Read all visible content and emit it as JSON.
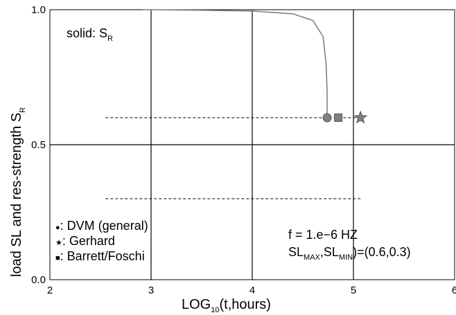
{
  "chart_data": {
    "type": "line",
    "xlabel": "LOG",
    "xlabel_sub": "10",
    "xlabel_suffix": "(t,hours)",
    "ylabel": "load SL and res-strength S",
    "ylabel_sub": "R",
    "xlim": [
      2,
      6
    ],
    "ylim": [
      0.0,
      1.0
    ],
    "x_ticks": [
      2,
      3,
      4,
      5,
      6
    ],
    "x_tick_labels": [
      "2",
      "3",
      "4",
      "5",
      "6"
    ],
    "y_ticks": [
      0.0,
      0.5,
      1.0
    ],
    "y_tick_labels": [
      "0.0",
      "0.5",
      "1.0"
    ],
    "grid": true,
    "residual_strength_curve": {
      "x": [
        2.92,
        3.5,
        4.0,
        4.4,
        4.6,
        4.7,
        4.73,
        4.74,
        4.74
      ],
      "y": [
        1.0,
        0.998,
        0.995,
        0.985,
        0.96,
        0.9,
        0.8,
        0.7,
        0.6
      ],
      "color": "#808080"
    },
    "load_levels": [
      {
        "x": [
          2.55,
          5.08
        ],
        "y": [
          0.6,
          0.6
        ]
      },
      {
        "x": [
          2.55,
          5.08
        ],
        "y": [
          0.3,
          0.3
        ]
      }
    ],
    "markers": [
      {
        "shape": "circle",
        "x": 4.74,
        "y": 0.6,
        "color": "#808080"
      },
      {
        "shape": "square",
        "x": 4.85,
        "y": 0.6,
        "color": "#808080"
      },
      {
        "shape": "star",
        "x": 5.07,
        "y": 0.6,
        "color": "#808080"
      }
    ],
    "annotations": {
      "solid_label": "solid:  S",
      "solid_sub": "R",
      "freq_text": "f  =  1.e−6  HZ",
      "sl_main": "SL",
      "sl_max_sub": "MAX",
      "sl_min_sub": "MIN",
      "sl_value": ")=(0.6,0.3)"
    },
    "legend": [
      {
        "symbol": "●",
        "label": ":  DVM  (general)"
      },
      {
        "symbol": "★",
        "label": ":  Gerhard"
      },
      {
        "symbol": "■",
        "label": ":  Barrett/Foschi"
      }
    ]
  }
}
